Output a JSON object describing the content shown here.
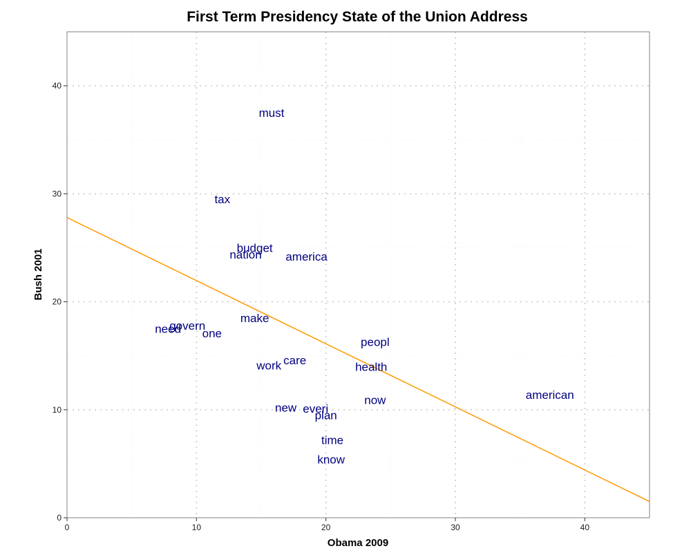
{
  "chart_data": {
    "type": "scatter",
    "title": "First Term Presidency State of the Union Address",
    "xlabel": "Obama 2009",
    "ylabel": "Bush  2001",
    "xlim": [
      0,
      45
    ],
    "ylim": [
      0,
      45
    ],
    "x_ticks": [
      "0",
      "10",
      "20",
      "30",
      "40"
    ],
    "y_ticks": [
      "0",
      "10",
      "20",
      "30",
      "40"
    ],
    "grid": true,
    "legend": "none",
    "point_color": "#000080",
    "line_color": "#ff9900",
    "points": [
      {
        "label": "must",
        "x": 15.8,
        "y": 37.5
      },
      {
        "label": "tax",
        "x": 12.0,
        "y": 29.5
      },
      {
        "label": "budget",
        "x": 14.5,
        "y": 25.0
      },
      {
        "label": "nation",
        "x": 13.8,
        "y": 24.4
      },
      {
        "label": "america",
        "x": 18.5,
        "y": 24.2
      },
      {
        "label": "make",
        "x": 14.5,
        "y": 18.5
      },
      {
        "label": "govern",
        "x": 9.3,
        "y": 17.8
      },
      {
        "label": "need",
        "x": 7.8,
        "y": 17.5
      },
      {
        "label": "one",
        "x": 11.2,
        "y": 17.1
      },
      {
        "label": "peopl",
        "x": 23.8,
        "y": 16.3
      },
      {
        "label": "care",
        "x": 17.6,
        "y": 14.6
      },
      {
        "label": "work",
        "x": 15.6,
        "y": 14.1
      },
      {
        "label": "health",
        "x": 23.5,
        "y": 14.0
      },
      {
        "label": "american",
        "x": 37.3,
        "y": 11.4
      },
      {
        "label": "now",
        "x": 23.8,
        "y": 10.9
      },
      {
        "label": "new",
        "x": 16.9,
        "y": 10.2
      },
      {
        "label": "everi",
        "x": 19.2,
        "y": 10.1
      },
      {
        "label": "plan",
        "x": 20.0,
        "y": 9.5
      },
      {
        "label": "time",
        "x": 20.5,
        "y": 7.2
      },
      {
        "label": "know",
        "x": 20.4,
        "y": 5.4
      }
    ],
    "fit_line": {
      "x": [
        0,
        45
      ],
      "y": [
        27.8,
        1.5
      ]
    }
  }
}
